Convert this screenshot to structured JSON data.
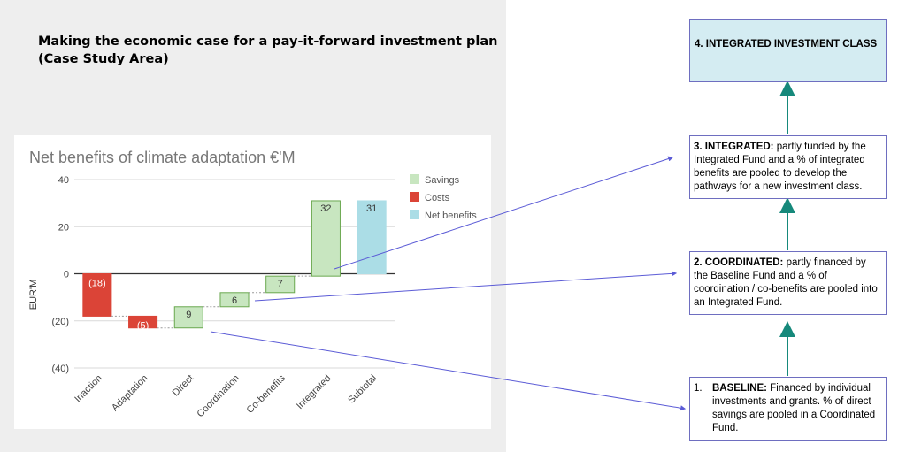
{
  "page": {
    "title_line1": "Making the economic case for a pay-it-forward investment plan",
    "title_line2": "(Case Study Area)"
  },
  "colors": {
    "savings": "#c8e6c0",
    "savings_border": "#6aa84f",
    "costs": "#db4437",
    "net": "#abdde6",
    "box_border": "#6e6ec0",
    "top_box_fill": "#d4ecf2",
    "arrow_teal": "#16897b",
    "arrow_purple": "#5b5bd6"
  },
  "chart_data": {
    "type": "waterfall",
    "title": "Net benefits of climate adaptation €'M",
    "ylabel": "EUR'M",
    "xlabel": "",
    "ylim": [
      -40,
      40
    ],
    "yticks": [
      40,
      20,
      0,
      -20,
      -40
    ],
    "ytick_labels": [
      "40",
      "20",
      "0",
      "(20)",
      "(40)"
    ],
    "grid": true,
    "legend_position": "right",
    "categories": [
      "Inaction",
      "Adaptation",
      "Direct",
      "Coordination",
      "Co-benefits",
      "Integrated",
      "Subtotal"
    ],
    "bars": [
      {
        "category": "Inaction",
        "start": 0,
        "end": -18,
        "value": -18,
        "kind": "Costs",
        "label": "(18)"
      },
      {
        "category": "Adaptation",
        "start": -18,
        "end": -23,
        "value": -5,
        "kind": "Costs",
        "label": "(5)"
      },
      {
        "category": "Direct",
        "start": -23,
        "end": -14,
        "value": 9,
        "kind": "Savings",
        "label": "9"
      },
      {
        "category": "Coordination",
        "start": -14,
        "end": -8,
        "value": 6,
        "kind": "Savings",
        "label": "6"
      },
      {
        "category": "Co-benefits",
        "start": -8,
        "end": -1,
        "value": 7,
        "kind": "Savings",
        "label": "7"
      },
      {
        "category": "Integrated",
        "start": -1,
        "end": 31,
        "value": 32,
        "kind": "Savings",
        "label": "32"
      },
      {
        "category": "Subtotal",
        "start": 0,
        "end": 31,
        "value": 31,
        "kind": "Net benefits",
        "label": "31"
      }
    ],
    "legend": [
      {
        "name": "Savings",
        "color": "#c8e6c0"
      },
      {
        "name": "Costs",
        "color": "#db4437"
      },
      {
        "name": "Net benefits",
        "color": "#abdde6"
      }
    ]
  },
  "boxes": {
    "integrated_class": {
      "text": "4. INTEGRATED INVESTMENT CLASS"
    },
    "integrated": {
      "heading": "3. INTEGRATED:",
      "text": " partly funded by the Integrated Fund and a % of integrated benefits are pooled to develop the pathways for a new investment class."
    },
    "coordinated": {
      "heading": "2. COORDINATED:",
      "text": " partly financed by the Baseline Fund and a % of coordination / co-benefits are pooled into an Integrated Fund."
    },
    "baseline": {
      "number": "1.",
      "heading": "BASELINE:",
      "text": " Financed by individual investments and grants. % of direct savings are pooled in a Coordinated Fund."
    }
  }
}
